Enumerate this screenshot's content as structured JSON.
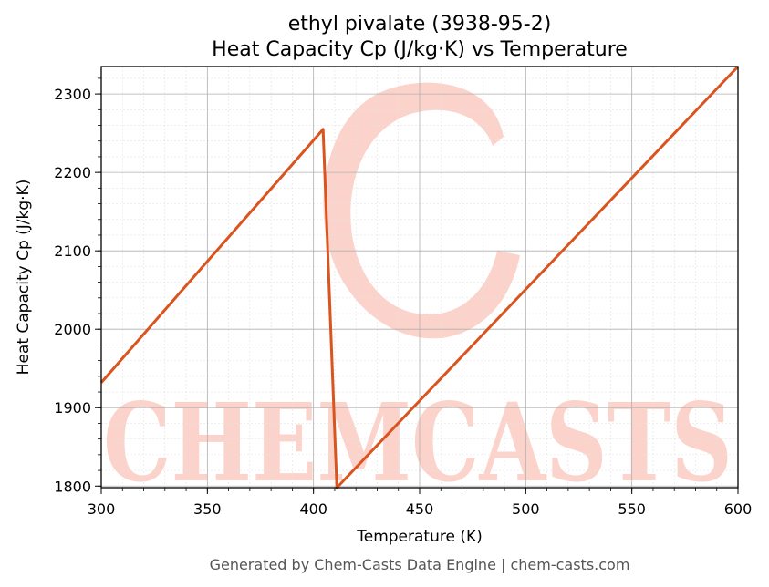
{
  "colors": {
    "line": "#d9541e",
    "watermark": "#fbd3cb",
    "grid_major": "#b0b0b0",
    "grid_minor": "#e3e3e3"
  },
  "watermark_text": "CHEMCASTS",
  "footer": "Generated by Chem-Casts Data Engine | chem-casts.com",
  "chart_data": {
    "type": "line",
    "title": "ethyl pivalate (3938-95-2)",
    "subtitle": "Heat Capacity Cp (J/kg·K) vs Temperature",
    "xlabel": "Temperature (K)",
    "ylabel": "Heat Capacity Cp (J/kg·K)",
    "xlim": [
      300,
      600
    ],
    "ylim": [
      1798,
      2335
    ],
    "xticks": [
      300,
      350,
      400,
      450,
      500,
      550,
      600
    ],
    "yticks": [
      1800,
      1900,
      2000,
      2100,
      2200,
      2300
    ],
    "grid": true,
    "legend": "none",
    "series": [
      {
        "x": [
          300,
          404.5,
          411,
          600
        ],
        "y": [
          1932,
          2255,
          1798,
          2335
        ]
      }
    ]
  }
}
